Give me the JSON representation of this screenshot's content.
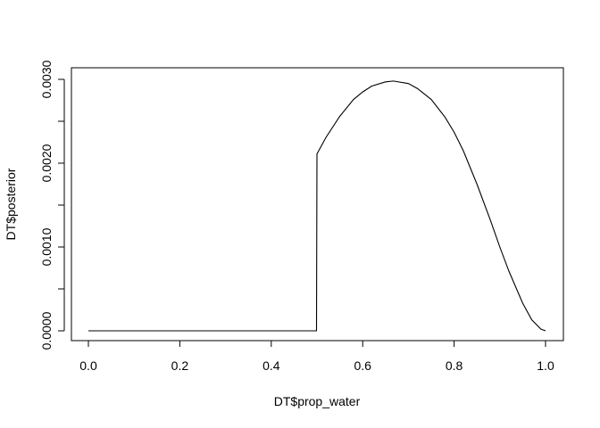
{
  "chart_data": {
    "type": "line",
    "title": "",
    "xlabel": "DT$prop_water",
    "ylabel": "DT$posterior",
    "xlim": [
      0.0,
      1.0
    ],
    "ylim": [
      0.0,
      0.003
    ],
    "x_ticks": [
      {
        "value": 0.0,
        "label": "0.0"
      },
      {
        "value": 0.2,
        "label": "0.2"
      },
      {
        "value": 0.4,
        "label": "0.4"
      },
      {
        "value": 0.6,
        "label": "0.6"
      },
      {
        "value": 0.8,
        "label": "0.8"
      },
      {
        "value": 1.0,
        "label": "1.0"
      }
    ],
    "y_ticks": [
      {
        "value": 0.0,
        "label": "0.0000"
      },
      {
        "value": 0.0005,
        "label": ""
      },
      {
        "value": 0.001,
        "label": "0.0010"
      },
      {
        "value": 0.0015,
        "label": ""
      },
      {
        "value": 0.002,
        "label": "0.0020"
      },
      {
        "value": 0.0025,
        "label": ""
      },
      {
        "value": 0.003,
        "label": "0.0030"
      }
    ],
    "grid": false,
    "legend": "none",
    "series": [
      {
        "x": [
          0.0,
          0.1,
          0.2,
          0.3,
          0.4,
          0.499,
          0.5,
          0.52,
          0.55,
          0.58,
          0.6,
          0.62,
          0.65,
          0.667,
          0.7,
          0.72,
          0.75,
          0.78,
          0.8,
          0.82,
          0.85,
          0.88,
          0.9,
          0.92,
          0.95,
          0.97,
          0.99,
          1.0
        ],
        "y": [
          0.0,
          0.0,
          0.0,
          0.0,
          0.0,
          0.0,
          0.00211,
          0.00231,
          0.00256,
          0.00276,
          0.00285,
          0.00292,
          0.00297,
          0.00298,
          0.00295,
          0.00289,
          0.00276,
          0.00255,
          0.00237,
          0.00215,
          0.00175,
          0.00131,
          0.001,
          0.00071,
          0.00033,
          0.00013,
          2e-05,
          0.0
        ]
      }
    ]
  }
}
